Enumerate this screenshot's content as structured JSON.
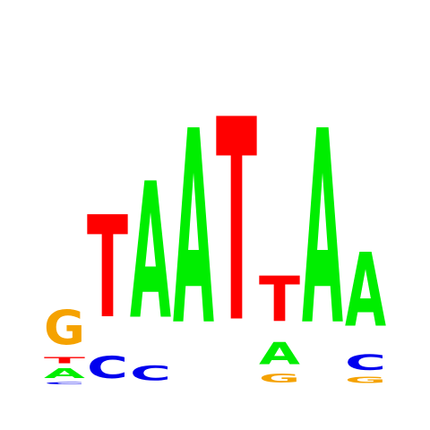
{
  "colors": {
    "A": "#00ee00",
    "C": "#0000ee",
    "G": "#f5a200",
    "T": "#ff0000"
  },
  "logo": {
    "positions": [
      {
        "stack": [
          {
            "letter": "C",
            "weight": 0.02
          },
          {
            "letter": "A",
            "weight": 0.08
          },
          {
            "letter": "T",
            "weight": 0.05
          },
          {
            "letter": "G",
            "weight": 0.28
          }
        ]
      },
      {
        "stack": [
          {
            "letter": "C",
            "weight": 0.18
          },
          {
            "letter": "T",
            "weight": 0.83
          }
        ]
      },
      {
        "stack": [
          {
            "letter": "C",
            "weight": 0.12
          },
          {
            "letter": "A",
            "weight": 1.11
          }
        ]
      },
      {
        "stack": [
          {
            "letter": "A",
            "weight": 1.58
          }
        ]
      },
      {
        "stack": [
          {
            "letter": "T",
            "weight": 1.65
          }
        ]
      },
      {
        "stack": [
          {
            "letter": "G",
            "weight": 0.07
          },
          {
            "letter": "A",
            "weight": 0.18
          },
          {
            "letter": "T",
            "weight": 0.37
          }
        ]
      },
      {
        "stack": [
          {
            "letter": "A",
            "weight": 1.58
          }
        ]
      },
      {
        "stack": [
          {
            "letter": "G",
            "weight": 0.05
          },
          {
            "letter": "C",
            "weight": 0.13
          },
          {
            "letter": "A",
            "weight": 0.6
          }
        ]
      }
    ]
  }
}
